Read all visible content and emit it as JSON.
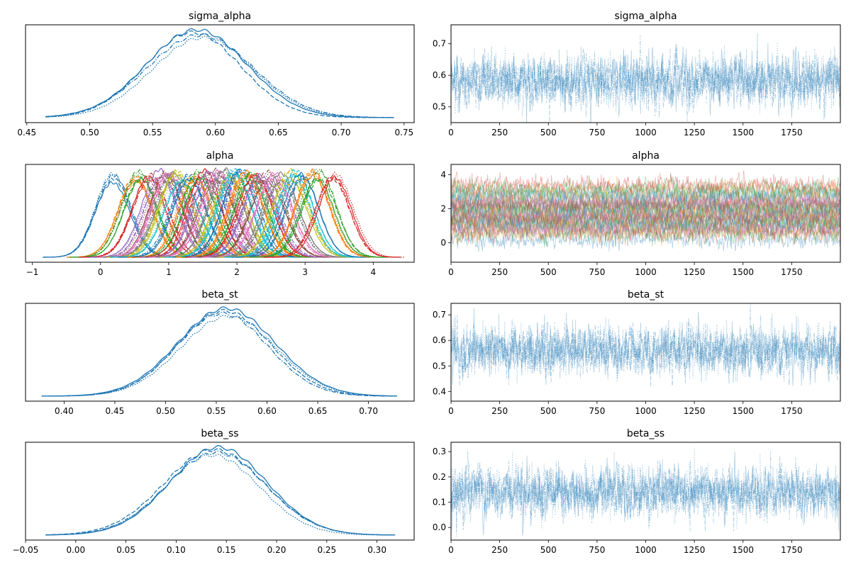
{
  "figure": {
    "type": "arviz-trace-plot"
  },
  "chart_data": [
    {
      "type": "line",
      "name": "sigma_alpha-density",
      "title": "sigma_alpha",
      "xlabel": "",
      "ylabel": "",
      "xlim": [
        0.449,
        0.758
      ],
      "xticks": [
        "0.45",
        "0.50",
        "0.55",
        "0.60",
        "0.65",
        "0.70",
        "0.75"
      ],
      "xtick_values": [
        0.45,
        0.5,
        0.55,
        0.6,
        0.65,
        0.7,
        0.75
      ],
      "yticks": [],
      "series": [
        {
          "name": "chain 0",
          "linestyle": "solid",
          "mean": 0.585,
          "sd": 0.04,
          "range": [
            0.465,
            0.742
          ]
        },
        {
          "name": "chain 1",
          "linestyle": "dashed",
          "mean": 0.582,
          "sd": 0.038,
          "range": [
            0.465,
            0.742
          ]
        },
        {
          "name": "chain 2",
          "linestyle": "dashdot",
          "mean": 0.588,
          "sd": 0.042,
          "range": [
            0.465,
            0.742
          ]
        },
        {
          "name": "chain 3",
          "linestyle": "dotted",
          "mean": 0.59,
          "sd": 0.04,
          "range": [
            0.465,
            0.742
          ]
        }
      ],
      "color": "#1f77b4"
    },
    {
      "type": "line",
      "name": "sigma_alpha-trace",
      "title": "sigma_alpha",
      "xlim": [
        0,
        2000
      ],
      "ylim": [
        0.45,
        0.76
      ],
      "xticks": [
        "0",
        "250",
        "500",
        "750",
        "1000",
        "1250",
        "1500",
        "1750"
      ],
      "xtick_values": [
        0,
        250,
        500,
        750,
        1000,
        1250,
        1500,
        1750
      ],
      "yticks": [
        "0.5",
        "0.6",
        "0.7"
      ],
      "ytick_values": [
        0.5,
        0.6,
        0.7
      ],
      "draws": 2000,
      "mean": 0.585,
      "sd": 0.04,
      "color": "#1f77b4"
    },
    {
      "type": "line",
      "name": "alpha-density",
      "title": "alpha",
      "xlim": [
        -1.1,
        4.6
      ],
      "xticks": [
        "−1",
        "0",
        "1",
        "2",
        "3",
        "4"
      ],
      "xtick_values": [
        -1,
        0,
        1,
        2,
        3,
        4
      ],
      "yticks": [],
      "group_means": [
        0.18,
        0.52,
        0.58,
        0.72,
        0.88,
        0.95,
        1.0,
        1.05,
        1.1,
        1.2,
        1.3,
        1.38,
        1.45,
        1.52,
        1.6,
        1.68,
        1.75,
        1.82,
        1.9,
        1.97,
        2.05,
        2.12,
        2.2,
        2.28,
        2.35,
        2.45,
        2.55,
        2.65,
        2.78,
        2.85,
        2.95,
        3.1,
        3.2,
        3.42
      ],
      "group_sd": 0.25,
      "colors": [
        "#1f77b4",
        "#ff7f0e",
        "#2ca02c",
        "#d62728",
        "#9467bd",
        "#8c564b",
        "#e377c2",
        "#7f7f7f",
        "#bcbd22",
        "#17becf"
      ]
    },
    {
      "type": "line",
      "name": "alpha-trace",
      "title": "alpha",
      "xlim": [
        0,
        2000
      ],
      "ylim": [
        -1.15,
        4.6
      ],
      "xticks": [
        "0",
        "250",
        "500",
        "750",
        "1000",
        "1250",
        "1500",
        "1750"
      ],
      "xtick_values": [
        0,
        250,
        500,
        750,
        1000,
        1250,
        1500,
        1750
      ],
      "yticks": [
        "0",
        "2",
        "4"
      ],
      "ytick_values": [
        0,
        2,
        4
      ],
      "draws": 2000
    },
    {
      "type": "line",
      "name": "beta_st-density",
      "title": "beta_st",
      "xlim": [
        0.362,
        0.745
      ],
      "xticks": [
        "0.40",
        "0.45",
        "0.50",
        "0.55",
        "0.60",
        "0.65",
        "0.70"
      ],
      "xtick_values": [
        0.4,
        0.45,
        0.5,
        0.55,
        0.6,
        0.65,
        0.7
      ],
      "yticks": [],
      "series": [
        {
          "name": "chain 0",
          "linestyle": "solid",
          "mean": 0.56,
          "sd": 0.048,
          "range": [
            0.378,
            0.728
          ]
        },
        {
          "name": "chain 1",
          "linestyle": "dashed",
          "mean": 0.558,
          "sd": 0.046,
          "range": [
            0.378,
            0.728
          ]
        },
        {
          "name": "chain 2",
          "linestyle": "dashdot",
          "mean": 0.556,
          "sd": 0.045,
          "range": [
            0.378,
            0.728
          ]
        },
        {
          "name": "chain 3",
          "linestyle": "dotted",
          "mean": 0.562,
          "sd": 0.047,
          "range": [
            0.378,
            0.728
          ]
        }
      ],
      "color": "#1f77b4"
    },
    {
      "type": "line",
      "name": "beta_st-trace",
      "title": "beta_st",
      "xlim": [
        0,
        2000
      ],
      "ylim": [
        0.362,
        0.745
      ],
      "xticks": [
        "0",
        "250",
        "500",
        "750",
        "1000",
        "1250",
        "1500",
        "1750"
      ],
      "xtick_values": [
        0,
        250,
        500,
        750,
        1000,
        1250,
        1500,
        1750
      ],
      "yticks": [
        "0.4",
        "0.5",
        "0.6",
        "0.7"
      ],
      "ytick_values": [
        0.4,
        0.5,
        0.6,
        0.7
      ],
      "draws": 2000,
      "mean": 0.56,
      "sd": 0.047,
      "color": "#1f77b4"
    },
    {
      "type": "line",
      "name": "beta_ss-density",
      "title": "beta_ss",
      "xlim": [
        -0.05,
        0.337
      ],
      "xticks": [
        "−0.05",
        "0.00",
        "0.05",
        "0.10",
        "0.15",
        "0.20",
        "0.25",
        "0.30"
      ],
      "xtick_values": [
        -0.05,
        0.0,
        0.05,
        0.1,
        0.15,
        0.2,
        0.25,
        0.3
      ],
      "yticks": [],
      "series": [
        {
          "name": "chain 0",
          "linestyle": "solid",
          "mean": 0.142,
          "sd": 0.048,
          "range": [
            -0.03,
            0.318
          ]
        },
        {
          "name": "chain 1",
          "linestyle": "dashed",
          "mean": 0.138,
          "sd": 0.05,
          "range": [
            -0.03,
            0.318
          ]
        },
        {
          "name": "chain 2",
          "linestyle": "dashdot",
          "mean": 0.14,
          "sd": 0.049,
          "range": [
            -0.03,
            0.318
          ]
        },
        {
          "name": "chain 3",
          "linestyle": "dotted",
          "mean": 0.136,
          "sd": 0.047,
          "range": [
            -0.03,
            0.318
          ]
        }
      ],
      "color": "#1f77b4"
    },
    {
      "type": "line",
      "name": "beta_ss-trace",
      "title": "beta_ss",
      "xlim": [
        0,
        2000
      ],
      "ylim": [
        -0.05,
        0.337
      ],
      "xticks": [
        "0",
        "250",
        "500",
        "750",
        "1000",
        "1250",
        "1500",
        "1750"
      ],
      "xtick_values": [
        0,
        250,
        500,
        750,
        1000,
        1250,
        1500,
        1750
      ],
      "yticks": [
        "0.0",
        "0.1",
        "0.2",
        "0.3"
      ],
      "ytick_values": [
        0.0,
        0.1,
        0.2,
        0.3
      ],
      "draws": 2000,
      "mean": 0.14,
      "sd": 0.048,
      "color": "#1f77b4"
    }
  ]
}
